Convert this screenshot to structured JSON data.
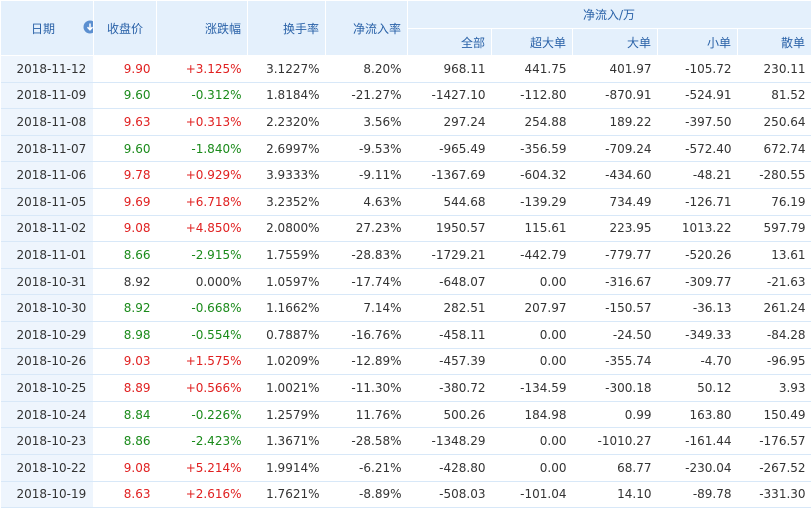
{
  "header": {
    "date": "日期",
    "close": "收盘价",
    "change": "涨跌幅",
    "turnover": "换手率",
    "net_rate": "净流入率",
    "net_group": "净流入/万",
    "all": "全部",
    "xl": "超大单",
    "large": "大单",
    "small": "小单",
    "retail": "散单"
  },
  "colors": {
    "up": "#e02020",
    "down": "#1a8a1a",
    "header_bg": "#e4f0fc",
    "header_text": "#2a62a8",
    "date_bg": "#eef5fd"
  },
  "rows": [
    {
      "date": "2018-11-12",
      "close": "9.90",
      "change": "+3.125%",
      "turnover": "3.1227%",
      "rate": "8.20%",
      "all": "968.11",
      "xl": "441.75",
      "large": "401.97",
      "small": "-105.72",
      "retail": "230.11",
      "dir": "up"
    },
    {
      "date": "2018-11-09",
      "close": "9.60",
      "change": "-0.312%",
      "turnover": "1.8184%",
      "rate": "-21.27%",
      "all": "-1427.10",
      "xl": "-112.80",
      "large": "-870.91",
      "small": "-524.91",
      "retail": "81.52",
      "dir": "down"
    },
    {
      "date": "2018-11-08",
      "close": "9.63",
      "change": "+0.313%",
      "turnover": "2.2320%",
      "rate": "3.56%",
      "all": "297.24",
      "xl": "254.88",
      "large": "189.22",
      "small": "-397.50",
      "retail": "250.64",
      "dir": "up"
    },
    {
      "date": "2018-11-07",
      "close": "9.60",
      "change": "-1.840%",
      "turnover": "2.6997%",
      "rate": "-9.53%",
      "all": "-965.49",
      "xl": "-356.59",
      "large": "-709.24",
      "small": "-572.40",
      "retail": "672.74",
      "dir": "down"
    },
    {
      "date": "2018-11-06",
      "close": "9.78",
      "change": "+0.929%",
      "turnover": "3.9333%",
      "rate": "-9.11%",
      "all": "-1367.69",
      "xl": "-604.32",
      "large": "-434.60",
      "small": "-48.21",
      "retail": "-280.55",
      "dir": "up"
    },
    {
      "date": "2018-11-05",
      "close": "9.69",
      "change": "+6.718%",
      "turnover": "3.2352%",
      "rate": "4.63%",
      "all": "544.68",
      "xl": "-139.29",
      "large": "734.49",
      "small": "-126.71",
      "retail": "76.19",
      "dir": "up"
    },
    {
      "date": "2018-11-02",
      "close": "9.08",
      "change": "+4.850%",
      "turnover": "2.0800%",
      "rate": "27.23%",
      "all": "1950.57",
      "xl": "115.61",
      "large": "223.95",
      "small": "1013.22",
      "retail": "597.79",
      "dir": "up"
    },
    {
      "date": "2018-11-01",
      "close": "8.66",
      "change": "-2.915%",
      "turnover": "1.7559%",
      "rate": "-28.83%",
      "all": "-1729.21",
      "xl": "-442.79",
      "large": "-779.77",
      "small": "-520.26",
      "retail": "13.61",
      "dir": "down"
    },
    {
      "date": "2018-10-31",
      "close": "8.92",
      "change": "0.000%",
      "turnover": "1.0597%",
      "rate": "-17.74%",
      "all": "-648.07",
      "xl": "0.00",
      "large": "-316.67",
      "small": "-309.77",
      "retail": "-21.63",
      "dir": "flat"
    },
    {
      "date": "2018-10-30",
      "close": "8.92",
      "change": "-0.668%",
      "turnover": "1.1662%",
      "rate": "7.14%",
      "all": "282.51",
      "xl": "207.97",
      "large": "-150.57",
      "small": "-36.13",
      "retail": "261.24",
      "dir": "down"
    },
    {
      "date": "2018-10-29",
      "close": "8.98",
      "change": "-0.554%",
      "turnover": "0.7887%",
      "rate": "-16.76%",
      "all": "-458.11",
      "xl": "0.00",
      "large": "-24.50",
      "small": "-349.33",
      "retail": "-84.28",
      "dir": "down"
    },
    {
      "date": "2018-10-26",
      "close": "9.03",
      "change": "+1.575%",
      "turnover": "1.0209%",
      "rate": "-12.89%",
      "all": "-457.39",
      "xl": "0.00",
      "large": "-355.74",
      "small": "-4.70",
      "retail": "-96.95",
      "dir": "up"
    },
    {
      "date": "2018-10-25",
      "close": "8.89",
      "change": "+0.566%",
      "turnover": "1.0021%",
      "rate": "-11.30%",
      "all": "-380.72",
      "xl": "-134.59",
      "large": "-300.18",
      "small": "50.12",
      "retail": "3.93",
      "dir": "up"
    },
    {
      "date": "2018-10-24",
      "close": "8.84",
      "change": "-0.226%",
      "turnover": "1.2579%",
      "rate": "11.76%",
      "all": "500.26",
      "xl": "184.98",
      "large": "0.99",
      "small": "163.80",
      "retail": "150.49",
      "dir": "down"
    },
    {
      "date": "2018-10-23",
      "close": "8.86",
      "change": "-2.423%",
      "turnover": "1.3671%",
      "rate": "-28.58%",
      "all": "-1348.29",
      "xl": "0.00",
      "large": "-1010.27",
      "small": "-161.44",
      "retail": "-176.57",
      "dir": "down"
    },
    {
      "date": "2018-10-22",
      "close": "9.08",
      "change": "+5.214%",
      "turnover": "1.9914%",
      "rate": "-6.21%",
      "all": "-428.80",
      "xl": "0.00",
      "large": "68.77",
      "small": "-230.04",
      "retail": "-267.52",
      "dir": "up"
    },
    {
      "date": "2018-10-19",
      "close": "8.63",
      "change": "+2.616%",
      "turnover": "1.7621%",
      "rate": "-8.89%",
      "all": "-508.03",
      "xl": "-101.04",
      "large": "14.10",
      "small": "-89.78",
      "retail": "-331.30",
      "dir": "up"
    }
  ]
}
